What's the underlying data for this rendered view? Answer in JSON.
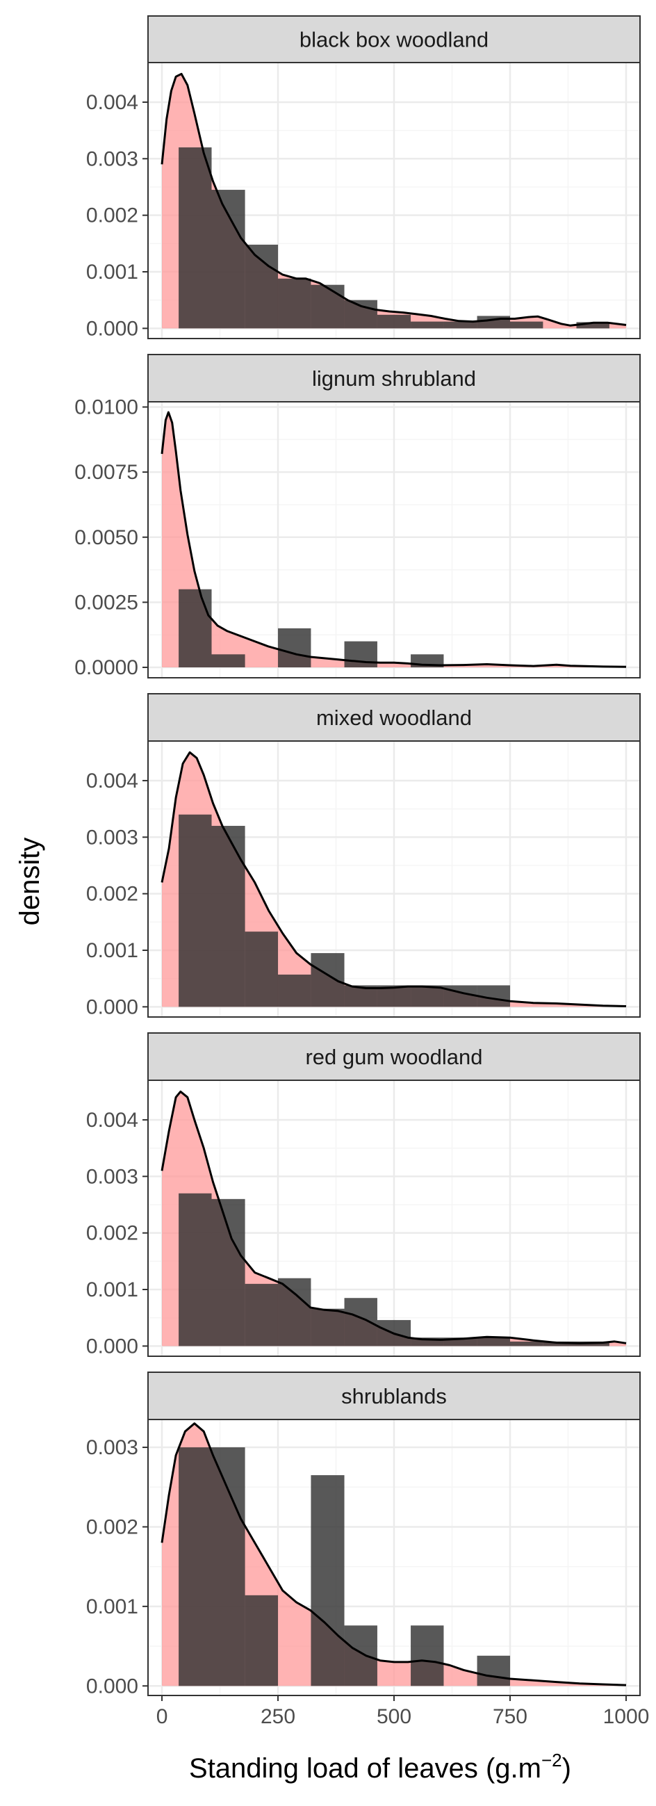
{
  "chart_data": {
    "type": "histogram with density overlay (faceted)",
    "xlabel": "Standing load of leaves (g.m",
    "xlabel_superscript": "−2",
    "xlabel_suffix": ")",
    "ylabel": "density",
    "xlim": [
      -30,
      1030
    ],
    "x_ticks": [
      0,
      250,
      500,
      750,
      1000
    ],
    "x_tick_labels": [
      "0",
      "250",
      "500",
      "750",
      "1000"
    ],
    "bin_width": 142.9,
    "grid": true,
    "colors": {
      "histogram": "#333333",
      "density_fill": "#ff9999",
      "density_line": "#000000",
      "strip_bg": "#d9d9d9",
      "panel_border": "#333333",
      "grid_major": "#ebebeb",
      "grid_minor": "#f5f5f5"
    },
    "facets": [
      {
        "title": "black box woodland",
        "ylim": [
          -0.00018,
          0.0047
        ],
        "y_ticks": [
          0,
          0.001,
          0.002,
          0.003,
          0.004
        ],
        "y_tick_labels": [
          "0.000",
          "0.001",
          "0.002",
          "0.003",
          "0.004"
        ],
        "bins": [
          [
            36,
            107,
            0.0032
          ],
          [
            107,
            179,
            0.00245
          ],
          [
            179,
            250,
            0.00148
          ],
          [
            250,
            321,
            0.00088
          ],
          [
            321,
            393,
            0.00077
          ],
          [
            393,
            464,
            0.0005
          ],
          [
            464,
            536,
            0.00024
          ],
          [
            536,
            607,
            0.00012
          ],
          [
            607,
            679,
            0.00012
          ],
          [
            679,
            750,
            0.00022
          ],
          [
            750,
            821,
            0.00012
          ],
          [
            821,
            893,
            0
          ],
          [
            893,
            964,
            0.00011
          ]
        ],
        "density": [
          [
            0,
            0.0029
          ],
          [
            10,
            0.0037
          ],
          [
            20,
            0.0042
          ],
          [
            30,
            0.00445
          ],
          [
            42,
            0.0045
          ],
          [
            55,
            0.0043
          ],
          [
            70,
            0.0038
          ],
          [
            90,
            0.0031
          ],
          [
            110,
            0.0026
          ],
          [
            130,
            0.0022
          ],
          [
            150,
            0.0019
          ],
          [
            170,
            0.0016
          ],
          [
            200,
            0.0013
          ],
          [
            230,
            0.0011
          ],
          [
            260,
            0.00095
          ],
          [
            290,
            0.00088
          ],
          [
            310,
            0.00088
          ],
          [
            340,
            0.0008
          ],
          [
            370,
            0.00065
          ],
          [
            400,
            0.0005
          ],
          [
            430,
            0.00039
          ],
          [
            460,
            0.00033
          ],
          [
            490,
            0.0003
          ],
          [
            520,
            0.00028
          ],
          [
            550,
            0.00025
          ],
          [
            580,
            0.00022
          ],
          [
            610,
            0.00017
          ],
          [
            640,
            0.00013
          ],
          [
            670,
            0.00012
          ],
          [
            700,
            0.00014
          ],
          [
            730,
            0.00017
          ],
          [
            760,
            0.00017
          ],
          [
            790,
            0.0002
          ],
          [
            810,
            0.00021
          ],
          [
            830,
            0.00016
          ],
          [
            860,
            8e-05
          ],
          [
            880,
            5e-05
          ],
          [
            900,
            7e-05
          ],
          [
            930,
            0.0001
          ],
          [
            960,
            0.0001
          ],
          [
            1000,
            6e-05
          ]
        ]
      },
      {
        "title": "lignum shrubland",
        "ylim": [
          -0.0004,
          0.0102
        ],
        "y_ticks": [
          0,
          0.0025,
          0.005,
          0.0075,
          0.01
        ],
        "y_tick_labels": [
          "0.0000",
          "0.0025",
          "0.0050",
          "0.0075",
          "0.0100"
        ],
        "bins": [
          [
            36,
            107,
            0.003
          ],
          [
            107,
            179,
            0.0005
          ],
          [
            179,
            250,
            0
          ],
          [
            250,
            321,
            0.0015
          ],
          [
            321,
            393,
            0
          ],
          [
            393,
            464,
            0.001
          ],
          [
            464,
            536,
            0
          ],
          [
            536,
            607,
            0.0005
          ],
          [
            607,
            679,
            0
          ],
          [
            679,
            750,
            0
          ],
          [
            750,
            821,
            0
          ],
          [
            821,
            893,
            0
          ],
          [
            893,
            964,
            0
          ]
        ],
        "density": [
          [
            0,
            0.0082
          ],
          [
            8,
            0.0095
          ],
          [
            14,
            0.0098
          ],
          [
            22,
            0.0094
          ],
          [
            30,
            0.0083
          ],
          [
            40,
            0.0068
          ],
          [
            55,
            0.0051
          ],
          [
            70,
            0.0037
          ],
          [
            85,
            0.0027
          ],
          [
            100,
            0.002
          ],
          [
            120,
            0.0016
          ],
          [
            140,
            0.0014
          ],
          [
            170,
            0.0012
          ],
          [
            200,
            0.001
          ],
          [
            230,
            0.0008
          ],
          [
            260,
            0.00065
          ],
          [
            290,
            0.0005
          ],
          [
            320,
            0.0004
          ],
          [
            350,
            0.00035
          ],
          [
            380,
            0.0003
          ],
          [
            410,
            0.00025
          ],
          [
            440,
            0.0002
          ],
          [
            470,
            0.00018
          ],
          [
            500,
            0.00018
          ],
          [
            530,
            0.00015
          ],
          [
            560,
            0.0001
          ],
          [
            600,
            8e-05
          ],
          [
            650,
            9e-05
          ],
          [
            700,
            0.00012
          ],
          [
            750,
            8e-05
          ],
          [
            800,
            5e-05
          ],
          [
            850,
            0.0001
          ],
          [
            880,
            6e-05
          ],
          [
            950,
            3e-05
          ],
          [
            1000,
            2e-05
          ]
        ]
      },
      {
        "title": "mixed woodland",
        "ylim": [
          -0.00018,
          0.0047
        ],
        "y_ticks": [
          0,
          0.001,
          0.002,
          0.003,
          0.004
        ],
        "y_tick_labels": [
          "0.000",
          "0.001",
          "0.002",
          "0.003",
          "0.004"
        ],
        "bins": [
          [
            36,
            107,
            0.0034
          ],
          [
            107,
            179,
            0.0032
          ],
          [
            179,
            250,
            0.00133
          ],
          [
            250,
            321,
            0.00057
          ],
          [
            321,
            393,
            0.00095
          ],
          [
            393,
            464,
            0.00038
          ],
          [
            464,
            536,
            0.00038
          ],
          [
            536,
            607,
            0.00038
          ],
          [
            607,
            679,
            0.00038
          ],
          [
            679,
            750,
            0.00038
          ],
          [
            750,
            821,
            0
          ],
          [
            821,
            893,
            0
          ],
          [
            893,
            964,
            0
          ]
        ],
        "density": [
          [
            0,
            0.0022
          ],
          [
            15,
            0.0028
          ],
          [
            30,
            0.0037
          ],
          [
            45,
            0.0043
          ],
          [
            60,
            0.0045
          ],
          [
            75,
            0.0044
          ],
          [
            90,
            0.0041
          ],
          [
            110,
            0.0036
          ],
          [
            130,
            0.0032
          ],
          [
            150,
            0.0029
          ],
          [
            170,
            0.0026
          ],
          [
            200,
            0.0022
          ],
          [
            230,
            0.0017
          ],
          [
            260,
            0.0013
          ],
          [
            290,
            0.00095
          ],
          [
            320,
            0.00075
          ],
          [
            350,
            0.0006
          ],
          [
            380,
            0.00045
          ],
          [
            410,
            0.00036
          ],
          [
            440,
            0.00033
          ],
          [
            470,
            0.00033
          ],
          [
            500,
            0.00034
          ],
          [
            530,
            0.00036
          ],
          [
            560,
            0.00036
          ],
          [
            600,
            0.00034
          ],
          [
            650,
            0.00024
          ],
          [
            700,
            0.00016
          ],
          [
            750,
            0.0001
          ],
          [
            800,
            7e-05
          ],
          [
            850,
            6e-05
          ],
          [
            900,
            4e-05
          ],
          [
            950,
            2e-05
          ],
          [
            1000,
            1e-05
          ]
        ]
      },
      {
        "title": "red gum woodland",
        "ylim": [
          -0.00018,
          0.0047
        ],
        "y_ticks": [
          0,
          0.001,
          0.002,
          0.003,
          0.004
        ],
        "y_tick_labels": [
          "0.000",
          "0.001",
          "0.002",
          "0.003",
          "0.004"
        ],
        "bins": [
          [
            36,
            107,
            0.0027
          ],
          [
            107,
            179,
            0.0026
          ],
          [
            179,
            250,
            0.0011
          ],
          [
            250,
            321,
            0.0012
          ],
          [
            321,
            393,
            0.00066
          ],
          [
            393,
            464,
            0.00085
          ],
          [
            464,
            536,
            0.00046
          ],
          [
            536,
            607,
            0.00015
          ],
          [
            607,
            679,
            0.00015
          ],
          [
            679,
            750,
            0.00015
          ],
          [
            750,
            821,
            8e-05
          ],
          [
            821,
            893,
            8e-05
          ],
          [
            893,
            964,
            8e-05
          ]
        ],
        "density": [
          [
            0,
            0.0031
          ],
          [
            15,
            0.0038
          ],
          [
            30,
            0.0044
          ],
          [
            40,
            0.0045
          ],
          [
            55,
            0.0044
          ],
          [
            70,
            0.004
          ],
          [
            90,
            0.0035
          ],
          [
            110,
            0.0029
          ],
          [
            130,
            0.0024
          ],
          [
            150,
            0.0019
          ],
          [
            170,
            0.0016
          ],
          [
            200,
            0.0013
          ],
          [
            230,
            0.0012
          ],
          [
            260,
            0.0011
          ],
          [
            290,
            0.0009
          ],
          [
            320,
            0.00068
          ],
          [
            350,
            0.00064
          ],
          [
            380,
            0.00062
          ],
          [
            410,
            0.00056
          ],
          [
            440,
            0.00046
          ],
          [
            470,
            0.00033
          ],
          [
            500,
            0.00022
          ],
          [
            530,
            0.00015
          ],
          [
            560,
            0.00012
          ],
          [
            600,
            0.00011
          ],
          [
            650,
            0.00013
          ],
          [
            700,
            0.00016
          ],
          [
            750,
            0.00015
          ],
          [
            800,
            0.0001
          ],
          [
            850,
            6e-05
          ],
          [
            900,
            5e-05
          ],
          [
            950,
            6e-05
          ],
          [
            975,
            8e-05
          ],
          [
            1000,
            5e-05
          ]
        ]
      },
      {
        "title": "shrublands",
        "ylim": [
          -0.00012,
          0.00335
        ],
        "y_ticks": [
          0,
          0.001,
          0.002,
          0.003
        ],
        "y_tick_labels": [
          "0.000",
          "0.001",
          "0.002",
          "0.003"
        ],
        "bins": [
          [
            36,
            107,
            0.003
          ],
          [
            107,
            179,
            0.003
          ],
          [
            179,
            250,
            0.00114
          ],
          [
            250,
            321,
            0
          ],
          [
            321,
            393,
            0.00265
          ],
          [
            393,
            464,
            0.00076
          ],
          [
            464,
            536,
            0
          ],
          [
            536,
            607,
            0.00076
          ],
          [
            607,
            679,
            0
          ],
          [
            679,
            750,
            0.00038
          ],
          [
            750,
            821,
            0
          ],
          [
            821,
            893,
            0
          ],
          [
            893,
            964,
            0
          ]
        ],
        "density": [
          [
            0,
            0.0018
          ],
          [
            15,
            0.0024
          ],
          [
            30,
            0.0029
          ],
          [
            50,
            0.0032
          ],
          [
            70,
            0.0033
          ],
          [
            90,
            0.0032
          ],
          [
            110,
            0.0029
          ],
          [
            140,
            0.0025
          ],
          [
            170,
            0.0021
          ],
          [
            200,
            0.0018
          ],
          [
            230,
            0.0015
          ],
          [
            260,
            0.0012
          ],
          [
            290,
            0.00105
          ],
          [
            320,
            0.00095
          ],
          [
            350,
            0.0008
          ],
          [
            380,
            0.00063
          ],
          [
            410,
            0.00048
          ],
          [
            440,
            0.00038
          ],
          [
            470,
            0.00032
          ],
          [
            500,
            0.0003
          ],
          [
            530,
            0.0003
          ],
          [
            560,
            0.00032
          ],
          [
            590,
            0.0003
          ],
          [
            620,
            0.00026
          ],
          [
            650,
            0.0002
          ],
          [
            700,
            0.00013
          ],
          [
            750,
            9e-05
          ],
          [
            800,
            7e-05
          ],
          [
            850,
            5e-05
          ],
          [
            900,
            3e-05
          ],
          [
            950,
            2e-05
          ],
          [
            1000,
            1e-05
          ]
        ]
      }
    ]
  }
}
